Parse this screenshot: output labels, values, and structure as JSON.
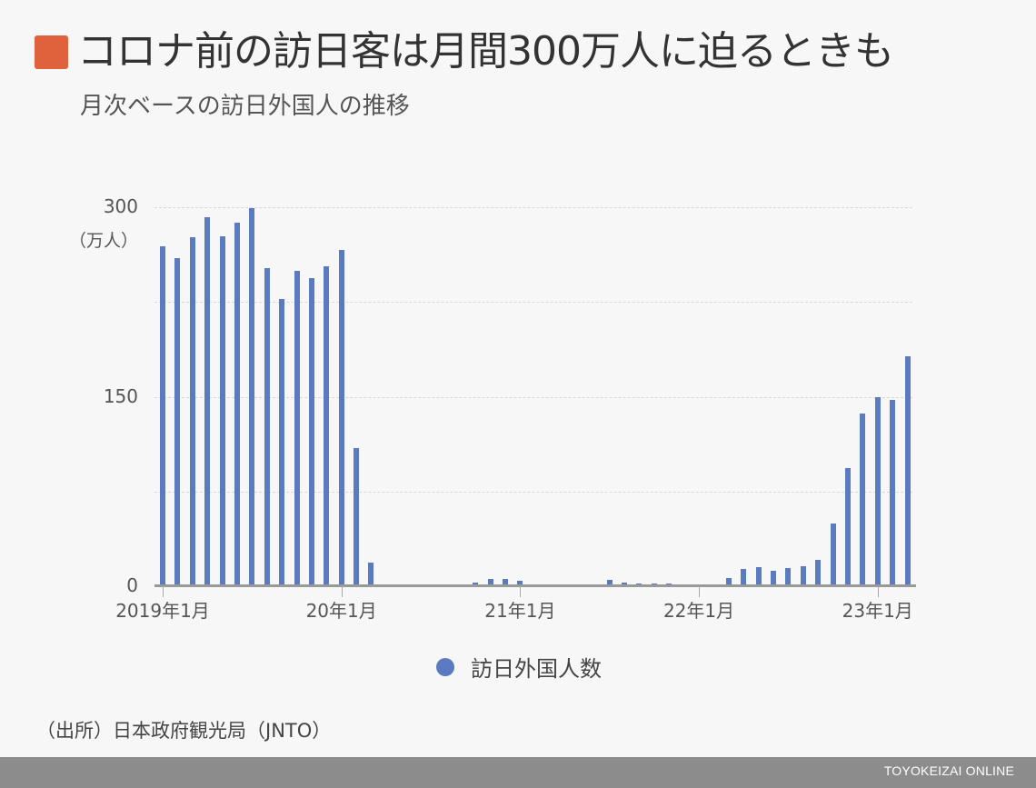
{
  "header": {
    "title": "コロナ前の訪日客は月間300万人に迫るときも",
    "subtitle": "月次ベースの訪日外国人の推移",
    "accent_color": "#e0623d"
  },
  "axis": {
    "y_ticks": [
      {
        "label": "300",
        "value": 300
      },
      {
        "label": "150",
        "value": 150
      },
      {
        "label": "0",
        "value": 0
      }
    ],
    "y_unit": "（万人）",
    "x_ticks": [
      {
        "label": "2019年1月",
        "index": 0
      },
      {
        "label": "20年1月",
        "index": 12
      },
      {
        "label": "21年1月",
        "index": 24
      },
      {
        "label": "22年1月",
        "index": 36
      },
      {
        "label": "23年1月",
        "index": 48
      }
    ]
  },
  "legend": {
    "label": "訪日外国人数"
  },
  "source": "（出所）日本政府観光局（JNTO）",
  "footer": {
    "brand": "TOYOKEIZAI ONLINE"
  },
  "colors": {
    "bar": "#5b7bc0",
    "baseline": "#999999",
    "grid": "#d8d8d8",
    "footer_bg": "#8c8c8c"
  },
  "chart_data": {
    "type": "bar",
    "title": "コロナ前の訪日客は月間300万人に迫るときも",
    "subtitle": "月次ベースの訪日外国人の推移",
    "xlabel": "",
    "ylabel": "（万人）",
    "ylim": [
      0,
      300
    ],
    "y_gridlines": [
      0,
      75,
      150,
      225,
      300
    ],
    "grid": true,
    "legend_position": "bottom",
    "categories": [
      "2019-01",
      "2019-02",
      "2019-03",
      "2019-04",
      "2019-05",
      "2019-06",
      "2019-07",
      "2019-08",
      "2019-09",
      "2019-10",
      "2019-11",
      "2019-12",
      "2020-01",
      "2020-02",
      "2020-03",
      "2020-04",
      "2020-05",
      "2020-06",
      "2020-07",
      "2020-08",
      "2020-09",
      "2020-10",
      "2020-11",
      "2020-12",
      "2021-01",
      "2021-02",
      "2021-03",
      "2021-04",
      "2021-05",
      "2021-06",
      "2021-07",
      "2021-08",
      "2021-09",
      "2021-10",
      "2021-11",
      "2021-12",
      "2022-01",
      "2022-02",
      "2022-03",
      "2022-04",
      "2022-05",
      "2022-06",
      "2022-07",
      "2022-08",
      "2022-09",
      "2022-10",
      "2022-11",
      "2022-12",
      "2023-01",
      "2023-02",
      "2023-03"
    ],
    "series": [
      {
        "name": "訪日外国人数",
        "values": [
          269,
          260,
          276,
          292,
          277,
          288,
          299,
          252,
          227,
          250,
          244,
          253,
          266,
          109,
          19,
          0.3,
          0.2,
          0.3,
          0.4,
          0.9,
          1.4,
          2.8,
          5.6,
          5.9,
          4.6,
          0.7,
          1.2,
          1.1,
          1.0,
          0.9,
          5.1,
          2.6,
          1.8,
          2.2,
          2.1,
          1.2,
          1.7,
          1.7,
          6.6,
          13.9,
          14.8,
          12.0,
          14.5,
          16.0,
          20.7,
          49.9,
          93.5,
          137.0,
          149.7,
          147.5,
          181.8
        ]
      }
    ]
  }
}
